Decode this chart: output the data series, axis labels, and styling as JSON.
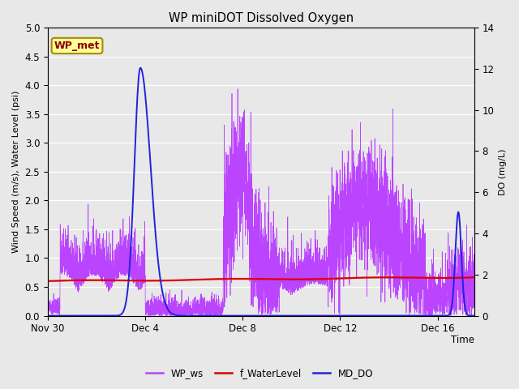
{
  "title": "WP miniDOT Dissolved Oxygen",
  "ylabel_left": "Wind Speed (m/s), Water Level (psi)",
  "ylabel_right": "DO (mg/L)",
  "xlabel": "Time",
  "ylim_left": [
    0.0,
    5.0
  ],
  "ylim_right": [
    0,
    14
  ],
  "yticks_left": [
    0.0,
    0.5,
    1.0,
    1.5,
    2.0,
    2.5,
    3.0,
    3.5,
    4.0,
    4.5,
    5.0
  ],
  "yticks_right": [
    0,
    2,
    4,
    6,
    8,
    10,
    12,
    14
  ],
  "xtick_pos": [
    0,
    4,
    8,
    12,
    16
  ],
  "xtick_labels": [
    "Nov 30",
    "Dec 4",
    "Dec 8",
    "Dec 12",
    "Dec 16"
  ],
  "fig_bg_color": "#e8e8e8",
  "plot_bg_color": "#e8e8e8",
  "grid_color": "#ffffff",
  "wp_ws_color": "#bb44ff",
  "f_waterlevel_color": "#dd0000",
  "md_do_color": "#2222dd",
  "legend_label_box": "WP_met",
  "legend_box_bg": "#ffff99",
  "legend_box_border": "#aa8800",
  "legend_box_text_color": "#880000",
  "total_days": 17.5,
  "n_points": 5000,
  "seed": 12345
}
